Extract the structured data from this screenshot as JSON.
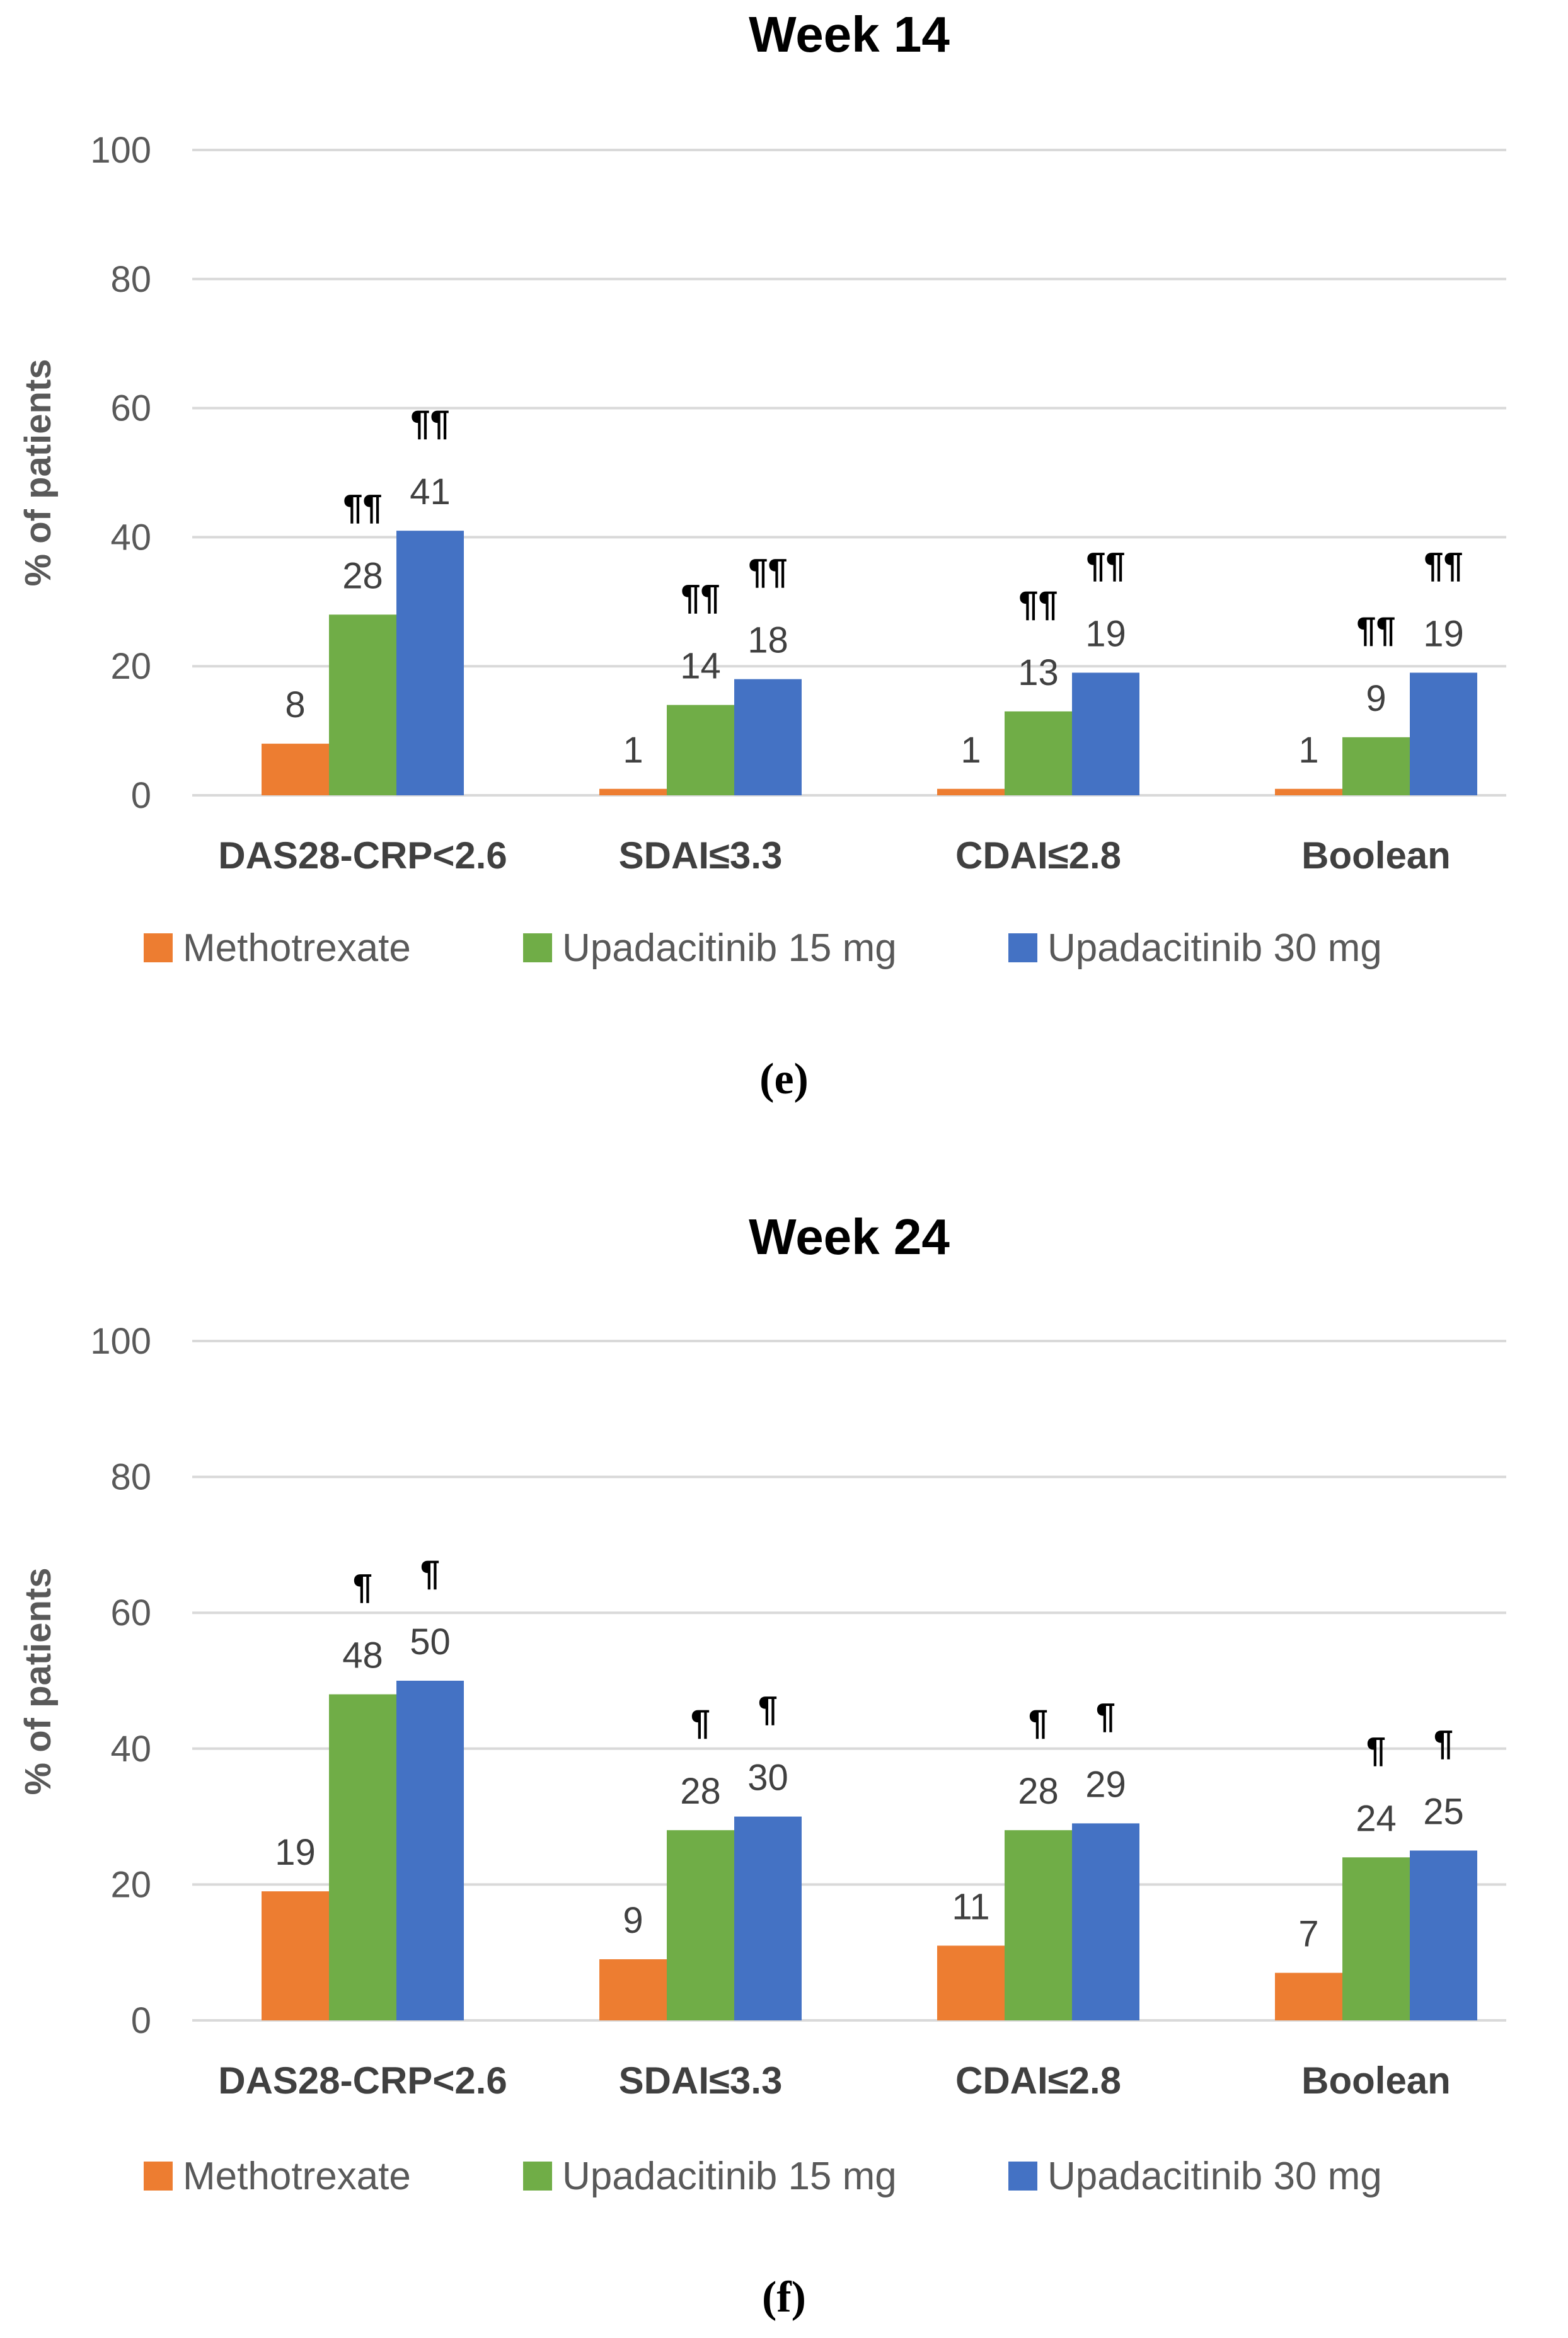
{
  "chart_data": [
    {
      "type": "bar",
      "title": "Week 14",
      "caption": "(e)",
      "ylabel": "% of patients",
      "xlabel": "",
      "ylim": [
        0,
        100
      ],
      "yticks": [
        0,
        20,
        40,
        60,
        80,
        100
      ],
      "categories": [
        "DAS28-CRP<2.6",
        "SDAI≤3.3",
        "CDAI≤2.8",
        "Boolean"
      ],
      "legend_position": "bottom",
      "series": [
        {
          "name": "Methotrexate",
          "color": "#ed7d31",
          "values": [
            8,
            1,
            1,
            1
          ],
          "marks": [
            "",
            "",
            "",
            ""
          ]
        },
        {
          "name": "Upadacitinib 15 mg",
          "color": "#70ad47",
          "values": [
            28,
            14,
            13,
            9
          ],
          "marks": [
            "¶¶",
            "¶¶",
            "¶¶",
            "¶¶"
          ]
        },
        {
          "name": "Upadacitinib 30 mg",
          "color": "#4472c4",
          "values": [
            41,
            18,
            19,
            19
          ],
          "marks": [
            "¶¶",
            "¶¶",
            "¶¶",
            "¶¶"
          ]
        }
      ]
    },
    {
      "type": "bar",
      "title": "Week 24",
      "caption": "(f)",
      "ylabel": "% of patients",
      "xlabel": "",
      "ylim": [
        0,
        100
      ],
      "yticks": [
        0,
        20,
        40,
        60,
        80,
        100
      ],
      "categories": [
        "DAS28-CRP<2.6",
        "SDAI≤3.3",
        "CDAI≤2.8",
        "Boolean"
      ],
      "legend_position": "bottom",
      "series": [
        {
          "name": "Methotrexate",
          "color": "#ed7d31",
          "values": [
            19,
            9,
            11,
            7
          ],
          "marks": [
            "",
            "",
            "",
            ""
          ]
        },
        {
          "name": "Upadacitinib 15 mg",
          "color": "#70ad47",
          "values": [
            48,
            28,
            28,
            24
          ],
          "marks": [
            "¶",
            "¶",
            "¶",
            "¶"
          ]
        },
        {
          "name": "Upadacitinib 30 mg",
          "color": "#4472c4",
          "values": [
            50,
            30,
            29,
            25
          ],
          "marks": [
            "¶",
            "¶",
            "¶",
            "¶"
          ]
        }
      ]
    }
  ]
}
